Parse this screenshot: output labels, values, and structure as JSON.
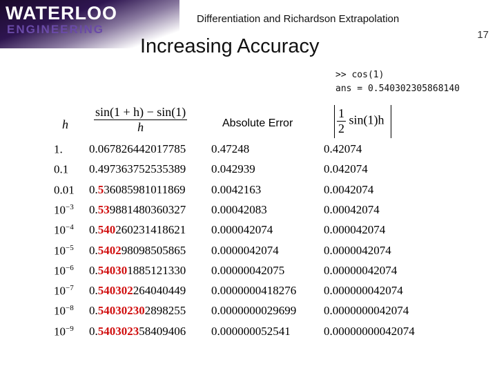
{
  "logo": {
    "line1": "WATERLOO",
    "line2": "ENGINEERING"
  },
  "header": {
    "subtitle": "Differentiation and Richardson Extrapolation",
    "page_number": "17",
    "title": "Increasing Accuracy"
  },
  "console": {
    "input": ">> cos(1)",
    "output": "ans = 0.540302305868140"
  },
  "table": {
    "headers": {
      "h": "h",
      "approx_num": "sin(1 + h) − sin(1)",
      "approx_den": "h",
      "error": "Absolute Error",
      "est_num": "1",
      "est_den": "2",
      "est_rest": "sin(1)h"
    },
    "accent": "#d01010",
    "rows": [
      {
        "h": "1.",
        "exp": "",
        "red": "",
        "rest": "067826442017785",
        "error": "0.47248",
        "estimate": "0.42074"
      },
      {
        "h": "0.1",
        "exp": "",
        "red": "",
        "rest": "497363752535389",
        "error": "0.042939",
        "estimate": "0.042074"
      },
      {
        "h": "0.01",
        "exp": "",
        "red": "5",
        "rest": "36085981011869",
        "error": "0.0042163",
        "estimate": "0.0042074"
      },
      {
        "h": "10",
        "exp": "−3",
        "red": "53",
        "rest": "9881480360327",
        "error": "0.00042083",
        "estimate": "0.00042074"
      },
      {
        "h": "10",
        "exp": "−4",
        "red": "540",
        "rest": "260231418621",
        "error": "0.000042074",
        "estimate": "0.000042074"
      },
      {
        "h": "10",
        "exp": "−5",
        "red": "5402",
        "rest": "98098505865",
        "error": "0.0000042074",
        "estimate": "0.0000042074"
      },
      {
        "h": "10",
        "exp": "−6",
        "red": "54030",
        "rest": "1885121330",
        "error": "0.00000042075",
        "estimate": "0.00000042074"
      },
      {
        "h": "10",
        "exp": "−7",
        "red": "540302",
        "rest": "264040449",
        "error": "0.0000000418276",
        "estimate": "0.000000042074"
      },
      {
        "h": "10",
        "exp": "−8",
        "red": "54030230",
        "rest": "2898255",
        "error": "0.0000000029699",
        "estimate": "0.0000000042074"
      },
      {
        "h": "10",
        "exp": "−9",
        "red": "5403023",
        "rest": "58409406",
        "error": "0.000000052541",
        "estimate": "0.00000000042074"
      }
    ]
  }
}
